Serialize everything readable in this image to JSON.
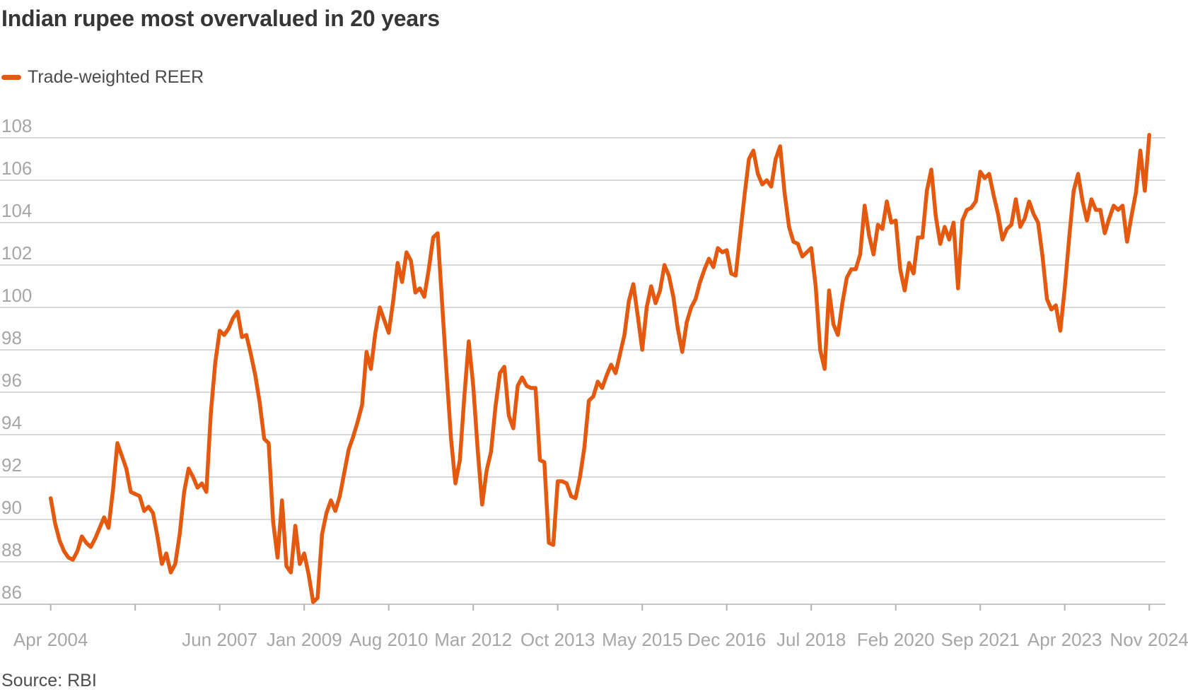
{
  "title": "Indian rupee most overvalued in 20 years",
  "legend": {
    "label": "Trade-weighted REER"
  },
  "source": "Source: RBI",
  "colors": {
    "accent_orange": "#e5590f",
    "title_text": "#363636",
    "legend_text": "#4a4a4a",
    "axis_label": "#a6a6a6",
    "grid": "#d9d9d9",
    "axis_line": "#c6c6c6",
    "tick": "#b3b3b3",
    "source_text": "#4d4d4d",
    "background": "#ffffff"
  },
  "chart_data": {
    "type": "line",
    "title": "Indian rupee most overvalued in 20 years",
    "series_name": "Trade-weighted REER",
    "frequency": "monthly",
    "x_start": "Apr 2004",
    "x_end": "Nov 2024",
    "ylim": [
      86,
      108
    ],
    "grid": true,
    "legend_position": "top-left",
    "y_ticks": [
      86,
      88,
      90,
      92,
      94,
      96,
      98,
      100,
      102,
      104,
      106,
      108
    ],
    "x_ticks": [
      {
        "t": 0,
        "label": "Apr 2004"
      },
      {
        "t": 19,
        "label": ""
      },
      {
        "t": 38,
        "label": "Jun 2007"
      },
      {
        "t": 57,
        "label": "Jan 2009"
      },
      {
        "t": 76,
        "label": "Aug 2010"
      },
      {
        "t": 95,
        "label": "Mar 2012"
      },
      {
        "t": 114,
        "label": "Oct 2013"
      },
      {
        "t": 133,
        "label": "May 2015"
      },
      {
        "t": 152,
        "label": "Dec 2016"
      },
      {
        "t": 171,
        "label": "Jul 2018"
      },
      {
        "t": 190,
        "label": "Feb 2020"
      },
      {
        "t": 209,
        "label": "Sep 2021"
      },
      {
        "t": 228,
        "label": "Apr 2023"
      },
      {
        "t": 247,
        "label": "Nov 2024"
      }
    ],
    "values": [
      91.0,
      89.8,
      89.0,
      88.5,
      88.2,
      88.1,
      88.5,
      89.2,
      88.9,
      88.7,
      89.1,
      89.6,
      90.1,
      89.6,
      91.4,
      93.6,
      93.0,
      92.4,
      91.3,
      91.2,
      91.1,
      90.4,
      90.6,
      90.3,
      89.2,
      87.9,
      88.4,
      87.5,
      87.9,
      89.3,
      91.3,
      92.4,
      92.0,
      91.5,
      91.7,
      91.3,
      95.0,
      97.4,
      98.9,
      98.7,
      99.0,
      99.5,
      99.8,
      98.6,
      98.7,
      97.8,
      96.8,
      95.5,
      93.8,
      93.6,
      89.9,
      88.2,
      90.9,
      87.8,
      87.5,
      89.7,
      87.9,
      88.4,
      87.4,
      86.1,
      86.3,
      89.3,
      90.3,
      90.9,
      90.4,
      91.1,
      92.2,
      93.3,
      93.9,
      94.6,
      95.4,
      97.9,
      97.1,
      98.8,
      100.0,
      99.4,
      98.8,
      100.3,
      102.1,
      101.2,
      102.6,
      102.2,
      100.7,
      100.9,
      100.5,
      101.8,
      103.3,
      103.5,
      100.2,
      96.9,
      93.8,
      91.7,
      92.8,
      95.8,
      98.4,
      96.3,
      93.3,
      90.7,
      92.3,
      93.2,
      95.3,
      96.9,
      97.2,
      94.9,
      94.3,
      96.3,
      96.7,
      96.3,
      96.2,
      96.2,
      92.8,
      92.7,
      88.9,
      88.8,
      91.8,
      91.8,
      91.7,
      91.1,
      91.0,
      92.0,
      93.4,
      95.6,
      95.8,
      96.5,
      96.2,
      96.8,
      97.3,
      96.9,
      97.8,
      98.7,
      100.3,
      101.1,
      99.6,
      98.0,
      100.0,
      101.0,
      100.2,
      100.8,
      102.0,
      101.5,
      100.5,
      99.0,
      97.9,
      99.3,
      100.0,
      100.4,
      101.2,
      101.8,
      102.3,
      101.9,
      102.8,
      102.6,
      102.7,
      101.6,
      101.5,
      103.4,
      105.3,
      107.0,
      107.4,
      106.3,
      105.8,
      106.0,
      105.7,
      107.0,
      107.6,
      105.4,
      103.8,
      103.1,
      103.0,
      102.4,
      102.6,
      102.8,
      101.0,
      98.0,
      97.1,
      100.8,
      99.2,
      98.7,
      100.2,
      101.4,
      101.8,
      101.8,
      102.5,
      104.8,
      103.4,
      102.5,
      103.9,
      103.7,
      105.0,
      104.0,
      104.1,
      101.8,
      100.8,
      102.1,
      101.6,
      103.3,
      103.3,
      105.5,
      106.5,
      104.3,
      103.0,
      103.8,
      103.2,
      104.0,
      100.9,
      104.1,
      104.6,
      104.7,
      105.0,
      106.4,
      106.1,
      106.3,
      105.3,
      104.4,
      103.2,
      103.7,
      103.9,
      105.1,
      103.8,
      104.2,
      105.0,
      104.4,
      104.0,
      102.4,
      100.4,
      99.9,
      100.1,
      98.9,
      100.9,
      103.3,
      105.5,
      106.3,
      105.0,
      104.1,
      105.1,
      104.6,
      104.6,
      103.5,
      104.2,
      104.8,
      104.6,
      104.8,
      103.1,
      104.3,
      105.4,
      107.4,
      105.5,
      108.14
    ]
  }
}
